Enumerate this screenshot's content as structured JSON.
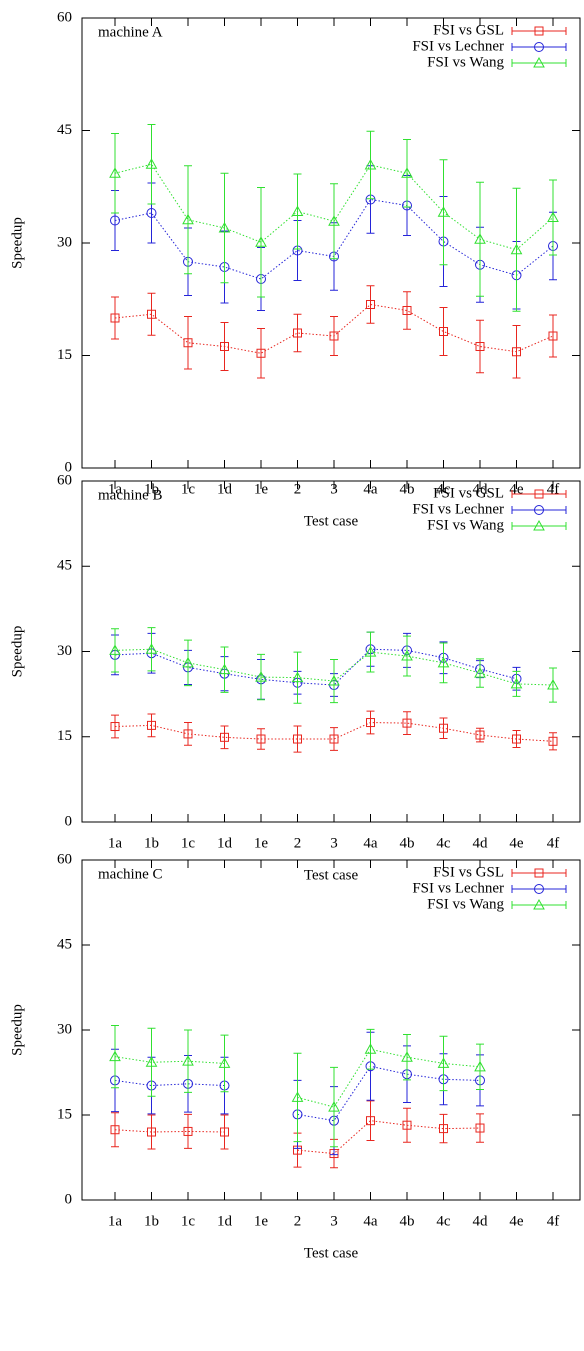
{
  "chart_data": [
    {
      "type": "line",
      "annotation": "machine A",
      "xlabel": "Test case",
      "ylabel": "Speedup",
      "categories": [
        "1a",
        "1b",
        "1c",
        "1d",
        "1e",
        "2",
        "3",
        "4a",
        "4b",
        "4c",
        "4d",
        "4e",
        "4f"
      ],
      "ylim": [
        0,
        60
      ],
      "yticks": [
        0,
        15,
        30,
        45,
        60
      ],
      "legend": "upper right",
      "series": [
        {
          "name": "FSI vs GSL",
          "color": "#e8261f",
          "marker": "square",
          "values": [
            20,
            20.5,
            16.7,
            16.2,
            15.3,
            18,
            17.6,
            21.8,
            21,
            18.2,
            16.2,
            15.5,
            17.6
          ],
          "errors": [
            2.8,
            2.8,
            3.5,
            3.2,
            3.3,
            2.5,
            2.6,
            2.5,
            2.5,
            3.2,
            3.5,
            3.5,
            2.8
          ]
        },
        {
          "name": "FSI vs Lechner",
          "color": "#2424d8",
          "marker": "circle",
          "values": [
            33,
            34,
            27.5,
            26.8,
            25.2,
            29,
            28.2,
            35.8,
            35,
            30.2,
            27.1,
            25.7,
            29.6
          ],
          "errors": [
            4,
            4,
            4.5,
            4.8,
            4.2,
            4,
            4.5,
            4.5,
            4,
            6,
            5,
            4.5,
            4.5
          ]
        },
        {
          "name": "FSI vs Wang",
          "color": "#30e030",
          "marker": "triangle",
          "values": [
            39.3,
            40.5,
            33.1,
            32,
            30.1,
            34.2,
            32.9,
            40.4,
            39.3,
            34.1,
            30.5,
            29.1,
            33.4
          ],
          "errors": [
            5.3,
            5.3,
            7.2,
            7.3,
            7.3,
            5,
            5,
            4.5,
            4.5,
            7,
            7.6,
            8.2,
            5
          ]
        }
      ]
    },
    {
      "type": "line",
      "annotation": "machine B",
      "xlabel": "Test case",
      "ylabel": "Speedup",
      "categories": [
        "1a",
        "1b",
        "1c",
        "1d",
        "1e",
        "2",
        "3",
        "4a",
        "4b",
        "4c",
        "4d",
        "4e",
        "4f"
      ],
      "ylim": [
        0,
        60
      ],
      "yticks": [
        0,
        15,
        30,
        45,
        60
      ],
      "legend": "upper right",
      "series": [
        {
          "name": "FSI vs GSL",
          "color": "#e8261f",
          "marker": "square",
          "values": [
            16.8,
            17,
            15.5,
            14.9,
            14.6,
            14.6,
            14.6,
            17.5,
            17.4,
            16.5,
            15.3,
            14.6,
            14.2
          ],
          "errors": [
            2,
            2,
            2,
            2,
            1.8,
            2.3,
            2,
            2,
            2,
            1.8,
            1.2,
            1.5,
            1.5
          ]
        },
        {
          "name": "FSI vs Lechner",
          "color": "#2424d8",
          "marker": "circle",
          "values": [
            29.4,
            29.7,
            27.2,
            26.1,
            25.1,
            24.5,
            24.1,
            30.4,
            30.2,
            28.9,
            26.9,
            25.2,
            null
          ],
          "errors": [
            3.5,
            3.5,
            3,
            3,
            3.5,
            2,
            2,
            3,
            3,
            2.8,
            1.5,
            2,
            null
          ]
        },
        {
          "name": "FSI vs Wang",
          "color": "#30e030",
          "marker": "triangle",
          "values": [
            30.2,
            30.4,
            28,
            26.8,
            25.5,
            25.4,
            24.8,
            29.9,
            29.2,
            28,
            26.2,
            24.3,
            24.1
          ],
          "errors": [
            3.8,
            3.8,
            4,
            4,
            4,
            4.5,
            3.8,
            3.5,
            3.5,
            3.5,
            2.5,
            2.2,
            3
          ]
        }
      ]
    },
    {
      "type": "line",
      "annotation": "machine C",
      "xlabel": "Test case",
      "ylabel": "Speedup",
      "categories": [
        "1a",
        "1b",
        "1c",
        "1d",
        "1e",
        "2",
        "3",
        "4a",
        "4b",
        "4c",
        "4d",
        "4e",
        "4f"
      ],
      "ylim": [
        0,
        60
      ],
      "yticks": [
        0,
        15,
        30,
        45,
        60
      ],
      "legend": "upper right",
      "series": [
        {
          "name": "FSI vs GSL",
          "color": "#e8261f",
          "marker": "square",
          "values": [
            12.4,
            12,
            12.1,
            12,
            null,
            8.8,
            8.2,
            14,
            13.2,
            12.6,
            12.7,
            null,
            null
          ],
          "errors": [
            3,
            3,
            3,
            3,
            null,
            3,
            2.5,
            3.5,
            3,
            2.5,
            2.5,
            null,
            null
          ]
        },
        {
          "name": "FSI vs Lechner",
          "color": "#2424d8",
          "marker": "circle",
          "values": [
            21.1,
            20.2,
            20.5,
            20.2,
            null,
            15.1,
            14,
            23.6,
            22.2,
            21.3,
            21.1,
            null,
            null
          ],
          "errors": [
            5.5,
            5,
            5,
            5,
            null,
            6,
            6,
            6,
            5,
            4.5,
            4.5,
            null,
            null
          ]
        },
        {
          "name": "FSI vs Wang",
          "color": "#30e030",
          "marker": "triangle",
          "values": [
            25.3,
            24.3,
            24.5,
            24.1,
            null,
            18.1,
            16.4,
            26.6,
            25.2,
            24.1,
            23.5,
            null,
            null
          ],
          "errors": [
            5.5,
            6,
            5.5,
            5,
            null,
            7.8,
            7,
            3.5,
            4,
            4.8,
            4,
            null,
            null
          ]
        }
      ]
    }
  ]
}
